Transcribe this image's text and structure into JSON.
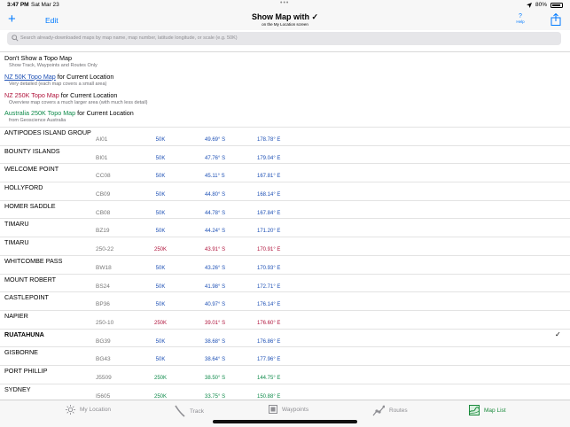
{
  "status": {
    "time": "3:47 PM",
    "date": "Sat Mar 23",
    "battery": "80%"
  },
  "nav": {
    "add_label": "+",
    "edit_label": "Edit",
    "title": "Show Map with ✓",
    "subtitle": "on the My Location screen",
    "help_glyph": "?",
    "help_label": "Help"
  },
  "search": {
    "placeholder": "Search already-downloaded maps by map name, map number, latitude longitude, or scale (e.g. 50K)"
  },
  "options": [
    {
      "title": "Don't Show a Topo Map",
      "subtitle": "Show Track, Waypoints and Routes Only"
    },
    {
      "title_link": "NZ 50K Topo Map",
      "title_rest": " for Current Location",
      "subtitle": "Very detailed (each map covers a small area)"
    },
    {
      "title_link": "NZ 250K Topo Map",
      "title_rest": " for Current Location",
      "subtitle": "Overview map covers a much larger area (with much less detail)"
    },
    {
      "title_link": "Australia 250K Topo Map",
      "title_rest": " for Current Location",
      "subtitle": "from Geoscience Australia"
    }
  ],
  "maps": [
    {
      "name": "ANTIPODES ISLAND GROUP",
      "code": "AI01",
      "scale": "50K",
      "lat": "49.69° S",
      "lon": "178.78° E",
      "color": "#1c4fb5"
    },
    {
      "name": "BOUNTY ISLANDS",
      "code": "BI01",
      "scale": "50K",
      "lat": "47.76° S",
      "lon": "179.04° E",
      "color": "#1c4fb5"
    },
    {
      "name": "WELCOME POINT",
      "code": "CC08",
      "scale": "50K",
      "lat": "45.11° S",
      "lon": "167.81° E",
      "color": "#1c4fb5"
    },
    {
      "name": "HOLLYFORD",
      "code": "CB09",
      "scale": "50K",
      "lat": "44.80° S",
      "lon": "168.14° E",
      "color": "#1c4fb5"
    },
    {
      "name": "HOMER SADDLE",
      "code": "CB08",
      "scale": "50K",
      "lat": "44.78° S",
      "lon": "167.84° E",
      "color": "#1c4fb5"
    },
    {
      "name": "TIMARU",
      "code": "BZ19",
      "scale": "50K",
      "lat": "44.24° S",
      "lon": "171.20° E",
      "color": "#1c4fb5"
    },
    {
      "name": "TIMARU",
      "code": "250-22",
      "scale": "250K",
      "lat": "43.91° S",
      "lon": "170.91° E",
      "color": "#b0143c"
    },
    {
      "name": "WHITCOMBE PASS",
      "code": "BW18",
      "scale": "50K",
      "lat": "43.26° S",
      "lon": "170.93° E",
      "color": "#1c4fb5"
    },
    {
      "name": "MOUNT ROBERT",
      "code": "BS24",
      "scale": "50K",
      "lat": "41.98° S",
      "lon": "172.71° E",
      "color": "#1c4fb5"
    },
    {
      "name": "CASTLEPOINT",
      "code": "BP36",
      "scale": "50K",
      "lat": "40.97° S",
      "lon": "176.14° E",
      "color": "#1c4fb5"
    },
    {
      "name": "NAPIER",
      "code": "250-10",
      "scale": "250K",
      "lat": "39.01° S",
      "lon": "176.60° E",
      "color": "#b0143c"
    },
    {
      "name": "RUATAHUNA",
      "code": "BG39",
      "scale": "50K",
      "lat": "38.68° S",
      "lon": "176.86° E",
      "color": "#1c4fb5",
      "selected": true,
      "check": "✓"
    },
    {
      "name": "GISBORNE",
      "code": "BG43",
      "scale": "50K",
      "lat": "38.64° S",
      "lon": "177.96° E",
      "color": "#1c4fb5"
    },
    {
      "name": "PORT PHILLIP",
      "code": "J5509",
      "scale": "250K",
      "lat": "38.50° S",
      "lon": "144.75° E",
      "color": "#0e8a4a"
    },
    {
      "name": "SYDNEY",
      "code": "I5605",
      "scale": "250K",
      "lat": "33.75° S",
      "lon": "150.88° E",
      "color": "#0e8a4a"
    }
  ],
  "tabs": [
    {
      "label": "My Location",
      "icon": "sun-icon"
    },
    {
      "label": "Track",
      "icon": "track-icon"
    },
    {
      "label": "Waypoints",
      "icon": "waypoint-icon"
    },
    {
      "label": "Routes",
      "icon": "route-icon"
    },
    {
      "label": "Map List",
      "icon": "map-icon",
      "active": true
    }
  ]
}
